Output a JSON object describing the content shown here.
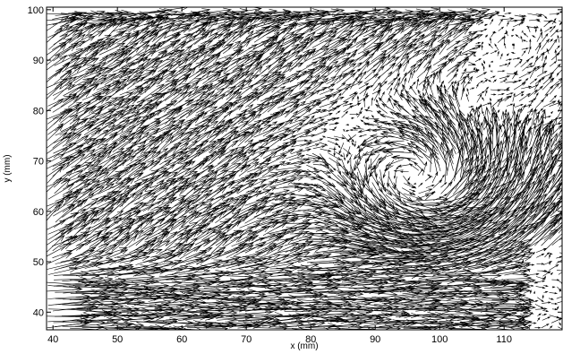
{
  "chart_data": {
    "type": "quiver",
    "title": "",
    "xlabel": "x (mm)",
    "ylabel": "y (mm)",
    "xlim": [
      39,
      119
    ],
    "ylim": [
      36.5,
      100.5
    ],
    "xticks": [
      40,
      50,
      60,
      70,
      80,
      90,
      100,
      110
    ],
    "yticks": [
      40,
      50,
      60,
      70,
      80,
      90,
      100
    ],
    "grid": false,
    "legend": "none",
    "arrow_color": "#000000",
    "field": {
      "grid_x": [
        39,
        119,
        1.15
      ],
      "grid_y": [
        37,
        100,
        1.15
      ],
      "vortex_center": [
        98,
        64
      ],
      "vortex_radius_mm": 10,
      "vortex_direction": "counterclockwise",
      "secondary_vortex_center": [
        112,
        88
      ],
      "jet_region": "y < 52 and x < 108, flowing right",
      "bulk_direction": "up-right",
      "top_flow": "rightward along y = 95-100",
      "max_arrow_length_mm": 7
    }
  }
}
